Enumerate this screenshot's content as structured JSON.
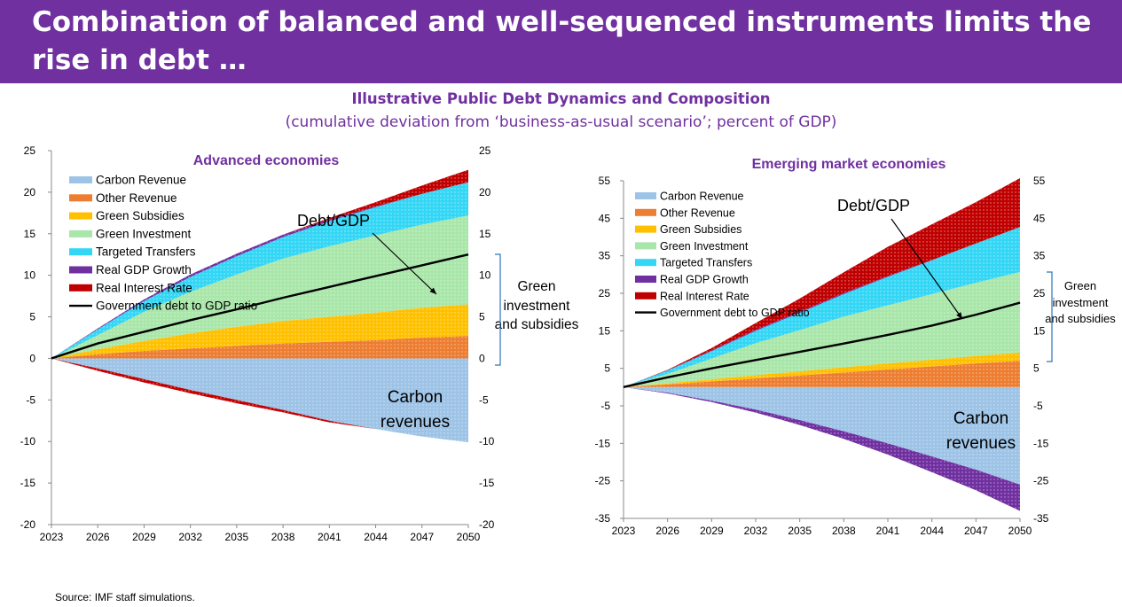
{
  "slide": {
    "title": "Combination of balanced and well-sequenced instruments limits the rise in debt …",
    "chart_title": "Illustrative Public Debt Dynamics and Composition",
    "chart_subtitle": "(cumulative deviation from ‘business-as-usual scenario’; percent of GDP)",
    "source": "Source: IMF staff simulations."
  },
  "colors": {
    "Carbon Revenue": "#9dc3e6",
    "Other Revenue": "#ed7d31",
    "Green Subsidies": "#ffc000",
    "Green Investment": "#a9e6a9",
    "Targeted Transfers": "#33d6f5",
    "Real GDP Growth": "#7030a0",
    "Real Interest Rate": "#c00000",
    "Government debt to GDP ratio": "#000000"
  },
  "chart_data": [
    {
      "type": "area",
      "title": "Advanced economies",
      "x": [
        2023,
        2026,
        2029,
        2032,
        2035,
        2038,
        2041,
        2044,
        2047,
        2050
      ],
      "xticks": [
        "2023",
        "2026",
        "2029",
        "2032",
        "2035",
        "2038",
        "2041",
        "2044",
        "2047",
        "2050"
      ],
      "ylim": [
        -20,
        25
      ],
      "yticks": [
        -20,
        -15,
        -10,
        -5,
        0,
        5,
        10,
        15,
        20,
        25
      ],
      "legend": [
        "Carbon Revenue",
        "Other Revenue",
        "Green Subsidies",
        "Green Investment",
        "Targeted Transfers",
        "Real GDP Growth",
        "Real Interest Rate",
        "Government debt to GDP ratio"
      ],
      "stacked_positive": [
        {
          "name": "Other Revenue",
          "values": [
            0,
            0.5,
            0.9,
            1.2,
            1.5,
            1.8,
            2.0,
            2.2,
            2.5,
            2.7
          ]
        },
        {
          "name": "Green Subsidies",
          "values": [
            0,
            0.6,
            1.2,
            1.8,
            2.3,
            2.7,
            3.0,
            3.3,
            3.6,
            3.8
          ]
        },
        {
          "name": "Green Investment",
          "values": [
            0,
            1.7,
            3.5,
            5.0,
            6.3,
            7.5,
            8.5,
            9.3,
            10.0,
            10.7
          ]
        },
        {
          "name": "Targeted Transfers",
          "values": [
            0,
            0.7,
            1.3,
            1.8,
            2.2,
            2.6,
            3.0,
            3.4,
            3.7,
            4.0
          ]
        },
        {
          "name": "Real GDP Growth",
          "values": [
            0,
            0.1,
            0.2,
            0.3,
            0.3,
            0.3,
            0.2,
            0.1,
            0.0,
            0.0
          ]
        },
        {
          "name": "Real Interest Rate",
          "values": [
            0,
            0,
            0,
            0,
            0,
            0,
            0.2,
            0.5,
            1.0,
            1.5
          ]
        }
      ],
      "stacked_negative": [
        {
          "name": "Carbon Revenue",
          "values": [
            0,
            -1.2,
            -2.5,
            -3.8,
            -5.0,
            -6.2,
            -7.5,
            -8.5,
            -9.4,
            -10.1
          ]
        },
        {
          "name": "Real Interest Rate",
          "values": [
            0,
            -0.3,
            -0.4,
            -0.4,
            -0.4,
            -0.3,
            -0.2,
            0,
            0,
            0
          ]
        }
      ],
      "line": {
        "name": "Government debt to GDP ratio",
        "values": [
          0,
          1.8,
          3.2,
          4.6,
          5.9,
          7.3,
          8.6,
          9.9,
          11.2,
          12.5
        ]
      },
      "annotations": {
        "debt": "Debt/GDP",
        "green": [
          "Green",
          "investment",
          "and subsidies"
        ],
        "carbon": [
          "Carbon",
          "revenues"
        ]
      }
    },
    {
      "type": "area",
      "title": "Emerging market economies",
      "x": [
        2023,
        2026,
        2029,
        2032,
        2035,
        2038,
        2041,
        2044,
        2047,
        2050
      ],
      "xticks": [
        "2023",
        "2026",
        "2029",
        "2032",
        "2035",
        "2038",
        "2041",
        "2044",
        "2047",
        "2050"
      ],
      "ylim": [
        -35,
        55
      ],
      "yticks": [
        -35,
        -25,
        -15,
        -5,
        5,
        15,
        25,
        35,
        45,
        55
      ],
      "legend": [
        "Carbon Revenue",
        "Other Revenue",
        "Green Subsidies",
        "Green Investment",
        "Targeted Transfers",
        "Real GDP Growth",
        "Real Interest Rate",
        "Government debt to GDP ratio"
      ],
      "stacked_positive": [
        {
          "name": "Other Revenue",
          "values": [
            0,
            0.7,
            1.5,
            2.3,
            3.1,
            3.9,
            4.7,
            5.5,
            6.3,
            7.0
          ]
        },
        {
          "name": "Green Subsidies",
          "values": [
            0,
            0.3,
            0.6,
            0.9,
            1.1,
            1.4,
            1.6,
            1.8,
            2.0,
            2.2
          ]
        },
        {
          "name": "Green Investment",
          "values": [
            0,
            2.5,
            5.5,
            8.5,
            11.0,
            13.5,
            15.5,
            17.5,
            19.5,
            21.5
          ]
        },
        {
          "name": "Targeted Transfers",
          "values": [
            0,
            0.9,
            2.0,
            3.3,
            4.6,
            6.0,
            7.6,
            9.0,
            10.5,
            12.0
          ]
        },
        {
          "name": "Real GDP Growth",
          "values": [
            0,
            0.1,
            0.2,
            0.3,
            0.3,
            0.3,
            0.2,
            0.1,
            0.0,
            0.0
          ]
        },
        {
          "name": "Real Interest Rate",
          "values": [
            0,
            0.1,
            0.6,
            1.8,
            3.5,
            5.5,
            7.8,
            9.5,
            11.0,
            13.0
          ]
        }
      ],
      "stacked_negative": [
        {
          "name": "Carbon Revenue",
          "values": [
            0,
            -1.5,
            -3.6,
            -6.0,
            -8.8,
            -11.8,
            -15.0,
            -18.5,
            -22.0,
            -26.0
          ]
        },
        {
          "name": "Real GDP Growth",
          "values": [
            0,
            -0.2,
            -0.4,
            -0.8,
            -1.3,
            -2.0,
            -3.0,
            -4.2,
            -5.5,
            -7.0
          ]
        }
      ],
      "line": {
        "name": "Government debt to GDP ratio",
        "values": [
          0,
          2.6,
          5.0,
          7.2,
          9.4,
          11.6,
          13.9,
          16.4,
          19.3,
          22.5
        ]
      },
      "annotations": {
        "debt": "Debt/GDP",
        "green": [
          "Green",
          "investment",
          "and subsidies"
        ],
        "carbon": [
          "Carbon",
          "revenues"
        ]
      }
    }
  ]
}
